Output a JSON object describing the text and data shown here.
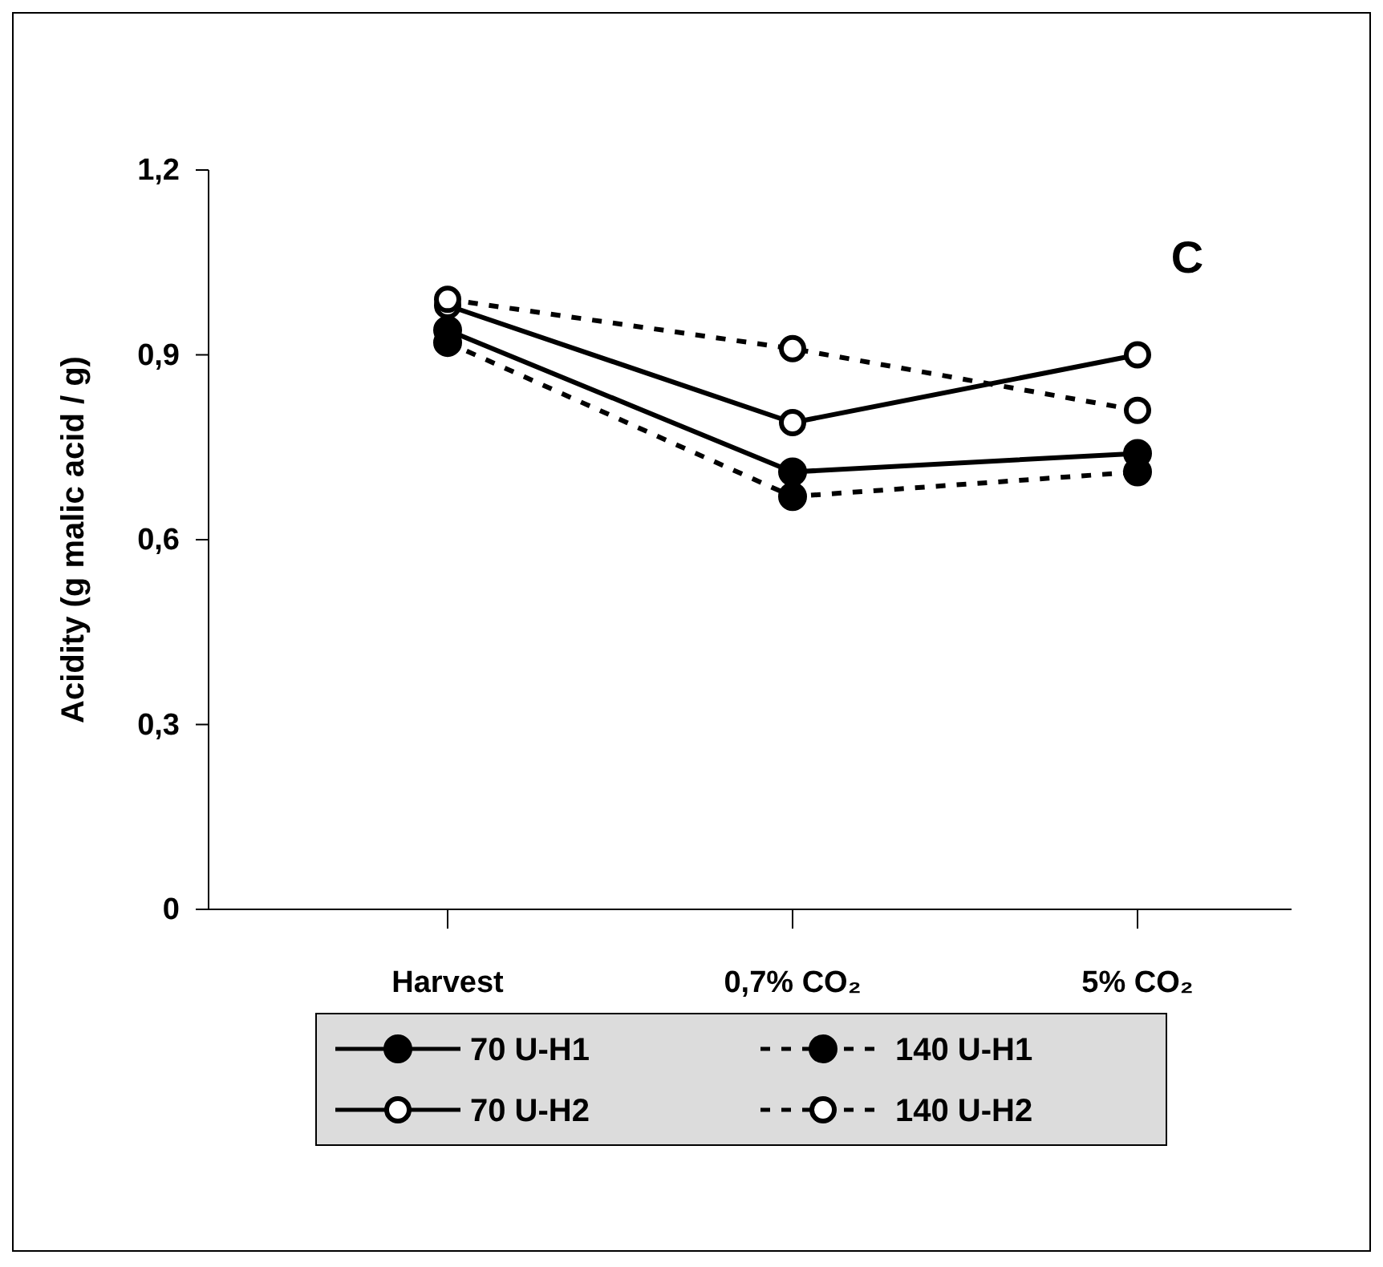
{
  "chart_data": {
    "type": "line",
    "title": "C",
    "ylabel": "Acidity (g malic acid / g)",
    "categories": [
      "Harvest",
      "0,7% CO₂",
      "5% CO₂"
    ],
    "ylim": [
      0,
      1.2
    ],
    "yticks": [
      0,
      {
        "value": 0.3,
        "label": "0,3"
      },
      {
        "value": 0.6,
        "label": "0,6"
      },
      {
        "value": 0.9,
        "label": "0,9"
      },
      {
        "value": 1.2,
        "label": "1,2"
      }
    ],
    "grid": false,
    "legend": "bottom",
    "series": [
      {
        "name": "70 U-H1",
        "color": "#000000",
        "marker": "circle",
        "line_style": "solid",
        "values": [
          0.94,
          0.71,
          0.74
        ]
      },
      {
        "name": "140 U-H1",
        "color": "#000000",
        "marker": "circle",
        "line_style": "dashed",
        "values": [
          0.92,
          0.67,
          0.71
        ]
      },
      {
        "name": "70 U-H2",
        "color": "#000000",
        "marker": "circle-open",
        "line_style": "solid",
        "values": [
          0.98,
          0.79,
          0.9
        ]
      },
      {
        "name": "140 U-H2",
        "color": "#000000",
        "marker": "circle-open",
        "line_style": "dashed",
        "values": [
          0.99,
          0.91,
          0.81
        ]
      }
    ]
  }
}
